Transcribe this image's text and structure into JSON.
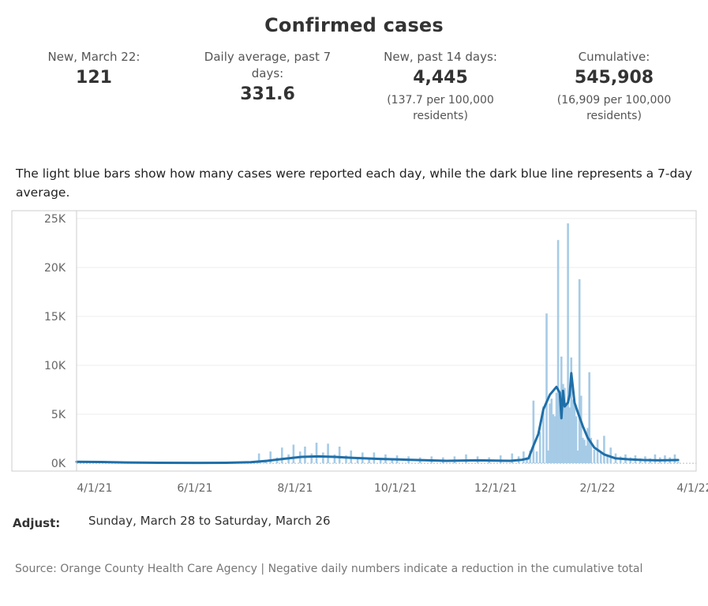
{
  "header": {
    "title": "Confirmed cases"
  },
  "stats": [
    {
      "label": "New, March 22:",
      "value": "121",
      "sub": ""
    },
    {
      "label": "Daily average, past 7 days:",
      "value": "331.6",
      "sub": ""
    },
    {
      "label": "New, past 14 days:",
      "value": "4,445",
      "sub": "(137.7 per 100,000 residents)"
    },
    {
      "label": "Cumulative:",
      "value": "545,908",
      "sub": "(16,909 per 100,000 residents)"
    }
  ],
  "description": "The light blue bars show how many cases were reported each day, while the dark blue line represents a 7-day average.",
  "adjust": {
    "label": "Adjust:",
    "value": "Sunday, March 28 to Saturday, March 26"
  },
  "source": "Source: Orange County Health Care Agency | Negative daily numbers indicate a reduction in the cumulative total",
  "colors": {
    "bars": "#a6cbe6",
    "line": "#1f6fa8",
    "grid": "#eeeeee",
    "axis": "#cccccc"
  },
  "chart_data": {
    "type": "bar",
    "bar_series": "Daily reported cases",
    "line_series": "7-day average",
    "x_start": "2021-03-21",
    "x_end": "2022-04-02",
    "ylim": [
      -800,
      25800
    ],
    "yticks": [
      {
        "value": 0,
        "label": "0K"
      },
      {
        "value": 5000,
        "label": "5K"
      },
      {
        "value": 10000,
        "label": "10K"
      },
      {
        "value": 15000,
        "label": "15K"
      },
      {
        "value": 20000,
        "label": "20K"
      },
      {
        "value": 25000,
        "label": "25K"
      }
    ],
    "xticks": [
      {
        "date": "2021-04-01",
        "label": "4/1/21"
      },
      {
        "date": "2021-06-01",
        "label": "6/1/21"
      },
      {
        "date": "2021-08-01",
        "label": "8/1/21"
      },
      {
        "date": "2021-10-01",
        "label": "10/1/21"
      },
      {
        "date": "2021-12-01",
        "label": "12/1/21"
      },
      {
        "date": "2022-02-01",
        "label": "2/1/22"
      },
      {
        "date": "2022-04-01",
        "label": "4/1/22"
      }
    ],
    "bars": [
      [
        "2021-07-10",
        1000
      ],
      [
        "2021-07-14",
        300
      ],
      [
        "2021-07-17",
        1200
      ],
      [
        "2021-07-21",
        600
      ],
      [
        "2021-07-24",
        1600
      ],
      [
        "2021-07-28",
        900
      ],
      [
        "2021-07-31",
        1900
      ],
      [
        "2021-08-04",
        1200
      ],
      [
        "2021-08-07",
        1700
      ],
      [
        "2021-08-11",
        1000
      ],
      [
        "2021-08-14",
        2100
      ],
      [
        "2021-08-18",
        1100
      ],
      [
        "2021-08-21",
        2000
      ],
      [
        "2021-08-25",
        900
      ],
      [
        "2021-08-28",
        1700
      ],
      [
        "2021-09-01",
        800
      ],
      [
        "2021-09-04",
        1300
      ],
      [
        "2021-09-08",
        500
      ],
      [
        "2021-09-11",
        1100
      ],
      [
        "2021-09-15",
        400
      ],
      [
        "2021-09-18",
        1100
      ],
      [
        "2021-09-22",
        500
      ],
      [
        "2021-09-25",
        900
      ],
      [
        "2021-09-29",
        400
      ],
      [
        "2021-10-02",
        800
      ],
      [
        "2021-10-09",
        700
      ],
      [
        "2021-10-16",
        600
      ],
      [
        "2021-10-23",
        700
      ],
      [
        "2021-10-30",
        600
      ],
      [
        "2021-11-06",
        700
      ],
      [
        "2021-11-13",
        900
      ],
      [
        "2021-11-20",
        700
      ],
      [
        "2021-11-27",
        600
      ],
      [
        "2021-12-04",
        800
      ],
      [
        "2021-12-11",
        1000
      ],
      [
        "2021-12-15",
        700
      ],
      [
        "2021-12-18",
        1200
      ],
      [
        "2021-12-20",
        600
      ],
      [
        "2021-12-22",
        1300
      ],
      [
        "2021-12-24",
        6400
      ],
      [
        "2021-12-26",
        1200
      ],
      [
        "2021-12-28",
        3200
      ],
      [
        "2021-12-30",
        5800
      ],
      [
        "2022-01-01",
        15300
      ],
      [
        "2022-01-02",
        1300
      ],
      [
        "2022-01-03",
        6100
      ],
      [
        "2022-01-04",
        6600
      ],
      [
        "2022-01-05",
        5000
      ],
      [
        "2022-01-06",
        4800
      ],
      [
        "2022-01-07",
        7200
      ],
      [
        "2022-01-08",
        22800
      ],
      [
        "2022-01-09",
        6800
      ],
      [
        "2022-01-10",
        10900
      ],
      [
        "2022-01-11",
        8100
      ],
      [
        "2022-01-12",
        7700
      ],
      [
        "2022-01-13",
        6200
      ],
      [
        "2022-01-14",
        24500
      ],
      [
        "2022-01-15",
        5700
      ],
      [
        "2022-01-16",
        10800
      ],
      [
        "2022-01-17",
        6500
      ],
      [
        "2022-01-18",
        6300
      ],
      [
        "2022-01-19",
        4800
      ],
      [
        "2022-01-20",
        1300
      ],
      [
        "2022-01-21",
        18800
      ],
      [
        "2022-01-22",
        6900
      ],
      [
        "2022-01-23",
        2600
      ],
      [
        "2022-01-24",
        2400
      ],
      [
        "2022-01-25",
        1800
      ],
      [
        "2022-01-26",
        3600
      ],
      [
        "2022-01-27",
        9300
      ],
      [
        "2022-01-28",
        2600
      ],
      [
        "2022-01-30",
        1400
      ],
      [
        "2022-02-01",
        2400
      ],
      [
        "2022-02-03",
        1100
      ],
      [
        "2022-02-05",
        2800
      ],
      [
        "2022-02-07",
        900
      ],
      [
        "2022-02-09",
        1600
      ],
      [
        "2022-02-12",
        1000
      ],
      [
        "2022-02-15",
        700
      ],
      [
        "2022-02-18",
        900
      ],
      [
        "2022-02-21",
        600
      ],
      [
        "2022-02-24",
        800
      ],
      [
        "2022-02-27",
        500
      ],
      [
        "2022-03-02",
        700
      ],
      [
        "2022-03-05",
        500
      ],
      [
        "2022-03-08",
        900
      ],
      [
        "2022-03-11",
        600
      ],
      [
        "2022-03-14",
        800
      ],
      [
        "2022-03-17",
        600
      ],
      [
        "2022-03-20",
        900
      ],
      [
        "2022-03-22",
        121
      ]
    ],
    "line": [
      [
        "2021-03-21",
        150
      ],
      [
        "2021-04-05",
        130
      ],
      [
        "2021-04-20",
        80
      ],
      [
        "2021-05-10",
        50
      ],
      [
        "2021-06-01",
        40
      ],
      [
        "2021-06-20",
        50
      ],
      [
        "2021-07-05",
        100
      ],
      [
        "2021-07-15",
        250
      ],
      [
        "2021-07-25",
        450
      ],
      [
        "2021-08-05",
        650
      ],
      [
        "2021-08-15",
        700
      ],
      [
        "2021-08-25",
        650
      ],
      [
        "2021-09-05",
        550
      ],
      [
        "2021-09-20",
        450
      ],
      [
        "2021-10-10",
        350
      ],
      [
        "2021-11-01",
        250
      ],
      [
        "2021-11-20",
        300
      ],
      [
        "2021-12-10",
        250
      ],
      [
        "2021-12-17",
        350
      ],
      [
        "2021-12-21",
        500
      ],
      [
        "2021-12-24",
        1800
      ],
      [
        "2021-12-27",
        3000
      ],
      [
        "2021-12-30",
        5500
      ],
      [
        "2022-01-03",
        7000
      ],
      [
        "2022-01-07",
        7800
      ],
      [
        "2022-01-09",
        7200
      ],
      [
        "2022-01-10",
        4600
      ],
      [
        "2022-01-11",
        7400
      ],
      [
        "2022-01-12",
        5800
      ],
      [
        "2022-01-14",
        6200
      ],
      [
        "2022-01-15",
        7000
      ],
      [
        "2022-01-16",
        9200
      ],
      [
        "2022-01-18",
        6200
      ],
      [
        "2022-01-20",
        5200
      ],
      [
        "2022-01-23",
        3800
      ],
      [
        "2022-01-26",
        2600
      ],
      [
        "2022-01-30",
        1600
      ],
      [
        "2022-02-05",
        900
      ],
      [
        "2022-02-12",
        500
      ],
      [
        "2022-02-20",
        400
      ],
      [
        "2022-03-01",
        330
      ],
      [
        "2022-03-10",
        300
      ],
      [
        "2022-03-22",
        330
      ]
    ]
  }
}
